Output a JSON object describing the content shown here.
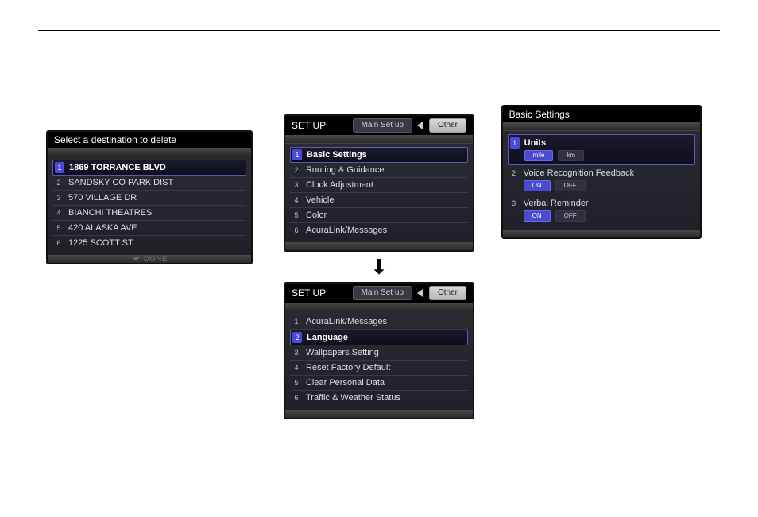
{
  "colors": {
    "page_bg": "#ffffff",
    "rule": "#000000",
    "shot_bg": "#2b2b2b",
    "shot_border": "#111111",
    "header_bg": "#000000",
    "header_text": "#ffffff",
    "panel_grad_top": "#2a2a32",
    "panel_grad_bottom": "#202028",
    "item_text": "#dcdce4",
    "item_divider": "#3a3a42",
    "selected_border": "#5a5ab0",
    "selected_num_bg": "#4a4ae0",
    "pill_active_bg": "#4a4ad0",
    "pill_inactive_bg": "#303040"
  },
  "shot1": {
    "title": "Select a destination to delete",
    "done_label": "DONE",
    "items": [
      {
        "num": "1",
        "label": "1869 TORRANCE BLVD",
        "selected": true
      },
      {
        "num": "2",
        "label": "SANDSKY CO PARK DIST",
        "selected": false
      },
      {
        "num": "3",
        "label": "570 VILLAGE DR",
        "selected": false
      },
      {
        "num": "4",
        "label": "BIANCHI THEATRES",
        "selected": false
      },
      {
        "num": "5",
        "label": "420 ALASKA AVE",
        "selected": false
      },
      {
        "num": "6",
        "label": "1225 SCOTT ST",
        "selected": false
      }
    ]
  },
  "shot2a": {
    "header_title": "SET UP",
    "tab_main": "Main Set up",
    "tab_other": "Other",
    "items": [
      {
        "num": "1",
        "label": "Basic Settings",
        "selected": true
      },
      {
        "num": "2",
        "label": "Routing & Guidance",
        "selected": false
      },
      {
        "num": "3",
        "label": "Clock Adjustment",
        "selected": false
      },
      {
        "num": "4",
        "label": "Vehicle",
        "selected": false
      },
      {
        "num": "5",
        "label": "Color",
        "selected": false
      },
      {
        "num": "6",
        "label": "AcuraLink/Messages",
        "selected": false
      }
    ]
  },
  "shot2b": {
    "header_title": "SET UP",
    "tab_main": "Main Set up",
    "tab_other": "Other",
    "items": [
      {
        "num": "1",
        "label": "AcuraLink/Messages",
        "selected": false
      },
      {
        "num": "2",
        "label": "Language",
        "selected": true
      },
      {
        "num": "3",
        "label": "Wallpapers Setting",
        "selected": false
      },
      {
        "num": "4",
        "label": "Reset Factory Default",
        "selected": false
      },
      {
        "num": "5",
        "label": "Clear Personal Data",
        "selected": false
      },
      {
        "num": "6",
        "label": "Traffic & Weather Status",
        "selected": false
      }
    ]
  },
  "shot3": {
    "title": "Basic Settings",
    "items": [
      {
        "num": "1",
        "label": "Units",
        "selected": true,
        "options": [
          {
            "text": "mile",
            "active": true
          },
          {
            "text": "km",
            "active": false
          }
        ]
      },
      {
        "num": "2",
        "label": "Voice Recognition Feedback",
        "selected": false,
        "options": [
          {
            "text": "ON",
            "active": true
          },
          {
            "text": "OFF",
            "active": false
          }
        ]
      },
      {
        "num": "3",
        "label": "Verbal Reminder",
        "selected": false,
        "options": [
          {
            "text": "ON",
            "active": true
          },
          {
            "text": "OFF",
            "active": false
          }
        ]
      }
    ]
  }
}
